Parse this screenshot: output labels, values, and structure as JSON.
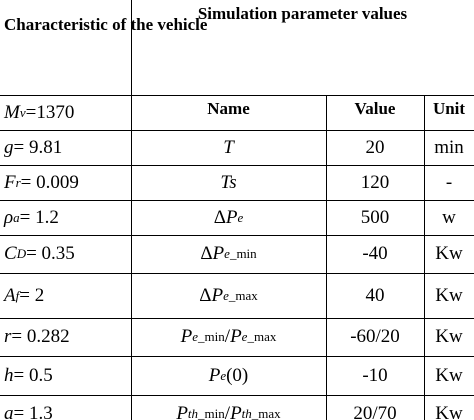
{
  "header": {
    "left": "Characteristic of the vehicle",
    "right": "Simulation parameter values"
  },
  "table": {
    "columns": [
      "Name",
      "Value",
      "Unit"
    ],
    "rows": [
      [
        [
          {
            "t": "M",
            "s": "i"
          },
          {
            "t": "v",
            "s": "si"
          },
          {
            "t": " =1370",
            "s": "n"
          }
        ],
        null,
        null,
        null
      ],
      [
        [
          {
            "t": "g",
            "s": "i"
          },
          {
            "t": " = 9.81",
            "s": "n"
          }
        ],
        [
          {
            "t": "T",
            "s": "i"
          }
        ],
        "20",
        "min"
      ],
      [
        [
          {
            "t": "F",
            "s": "i"
          },
          {
            "t": "r",
            "s": "si"
          },
          {
            "t": " = 0.009",
            "s": "n"
          }
        ],
        [
          {
            "t": "Ts",
            "s": "i"
          }
        ],
        "120",
        "-"
      ],
      [
        [
          {
            "t": "ρ",
            "s": "i"
          },
          {
            "t": "a",
            "s": "si"
          },
          {
            "t": " = 1.2",
            "s": "n"
          }
        ],
        [
          {
            "t": "Δ",
            "s": "n"
          },
          {
            "t": "P",
            "s": "i"
          },
          {
            "t": "e",
            "s": "si"
          }
        ],
        "500",
        "w"
      ],
      [
        [
          {
            "t": "C",
            "s": "i"
          },
          {
            "t": "D",
            "s": "si"
          },
          {
            "t": " = 0.35",
            "s": "n"
          }
        ],
        [
          {
            "t": "Δ",
            "s": "n"
          },
          {
            "t": "P",
            "s": "i"
          },
          {
            "t": "e",
            "s": "si"
          },
          {
            "t": "_min",
            "s": "sn"
          }
        ],
        "-40",
        "Kw"
      ],
      [
        [
          {
            "t": "A",
            "s": "i"
          },
          {
            "t": "f",
            "s": "si"
          },
          {
            "t": " = 2",
            "s": "n"
          }
        ],
        [
          {
            "t": "Δ",
            "s": "n"
          },
          {
            "t": "P",
            "s": "i"
          },
          {
            "t": "e",
            "s": "si"
          },
          {
            "t": "_max",
            "s": "sn"
          }
        ],
        "40",
        "Kw"
      ],
      [
        [
          {
            "t": "r",
            "s": "i"
          },
          {
            "t": " = 0.282",
            "s": "n"
          }
        ],
        [
          {
            "t": "P",
            "s": "i"
          },
          {
            "t": "e",
            "s": "si"
          },
          {
            "t": "_min",
            "s": "sn"
          },
          {
            "t": " / ",
            "s": "n"
          },
          {
            "t": "P",
            "s": "i"
          },
          {
            "t": "e",
            "s": "si"
          },
          {
            "t": "_max",
            "s": "sn"
          }
        ],
        "-60/20",
        "Kw"
      ],
      [
        [
          {
            "t": "h",
            "s": "i"
          },
          {
            "t": " = 0.5",
            "s": "n"
          }
        ],
        [
          {
            "t": "P",
            "s": "i"
          },
          {
            "t": "e",
            "s": "si"
          },
          {
            "t": "(0)",
            "s": "n"
          }
        ],
        "-10",
        "Kw"
      ],
      [
        [
          {
            "t": "a",
            "s": "i"
          },
          {
            "t": " = 1.3",
            "s": "n"
          }
        ],
        [
          {
            "t": "P",
            "s": "i"
          },
          {
            "t": "th",
            "s": "si"
          },
          {
            "t": "_min",
            "s": "sn"
          },
          {
            "t": " / ",
            "s": "n"
          },
          {
            "t": "P",
            "s": "i"
          },
          {
            "t": "th",
            "s": "si"
          },
          {
            "t": "_max",
            "s": "sn"
          }
        ],
        "20/70",
        "Kw"
      ]
    ]
  }
}
